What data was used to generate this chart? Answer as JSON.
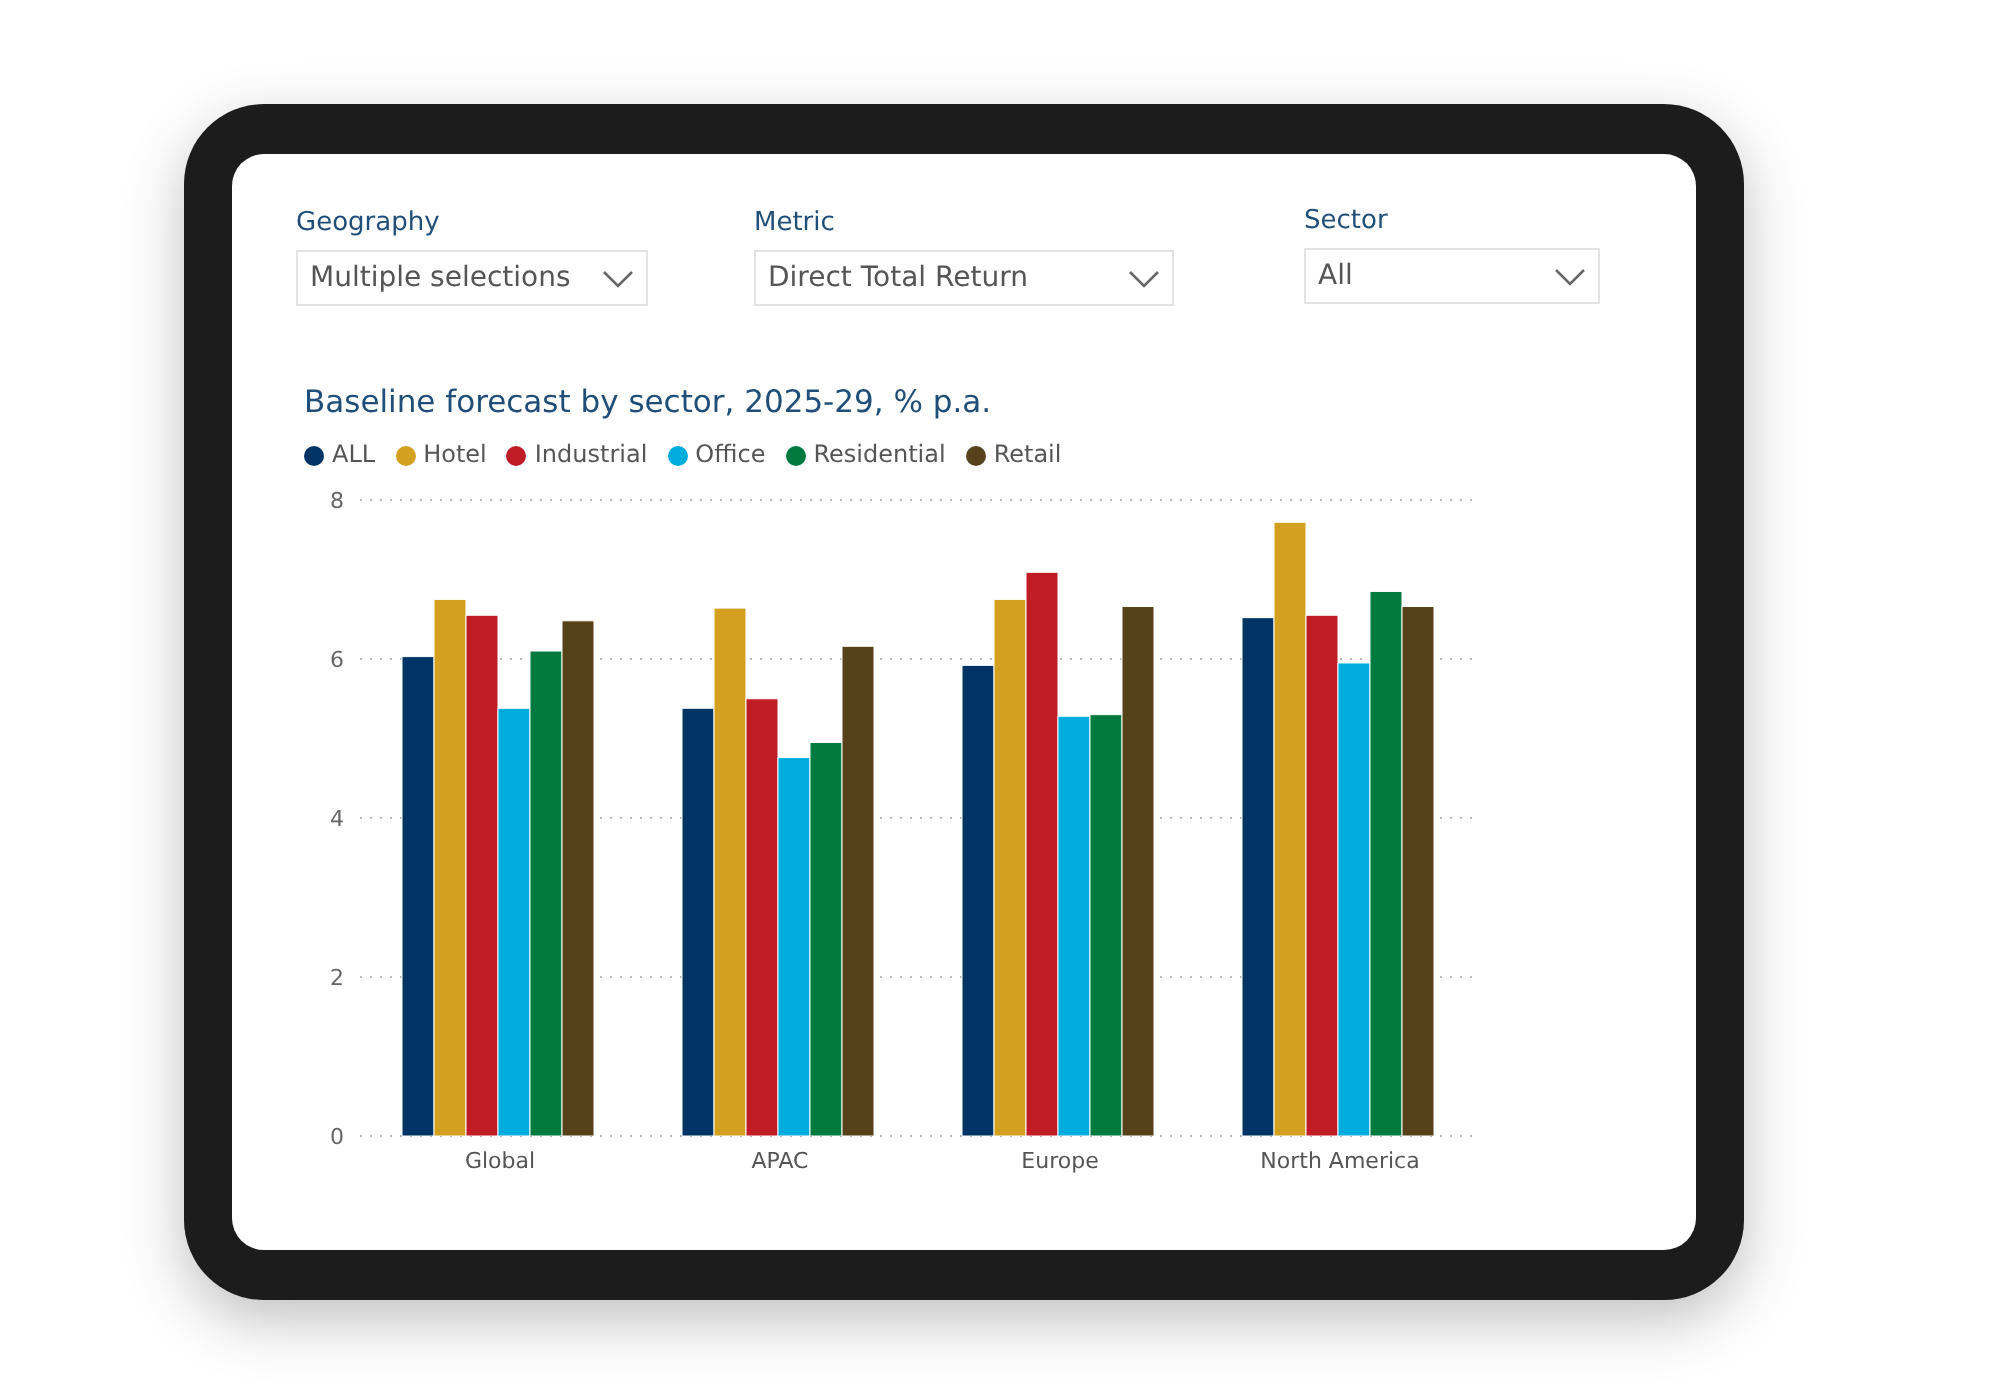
{
  "chart_data": {
    "type": "bar",
    "title": "Baseline forecast by sector, 2025-29, % p.a.",
    "annotations": [
      "Geography",
      "Multiple selections",
      "Metric",
      "Direct Total Return",
      "Sector",
      "All"
    ],
    "categories": [
      "Global",
      "APAC",
      "Europe",
      "North America"
    ],
    "series": [
      {
        "name": "ALL",
        "color": "#003366",
        "values": [
          6.03,
          5.38,
          5.92,
          6.52
        ]
      },
      {
        "name": "Hotel",
        "color": "#d4a020",
        "values": [
          6.75,
          6.64,
          6.75,
          7.72
        ]
      },
      {
        "name": "Industrial",
        "color": "#c01c26",
        "values": [
          6.55,
          5.5,
          7.09,
          6.55
        ]
      },
      {
        "name": "Office",
        "color": "#00acdc",
        "values": [
          5.38,
          4.76,
          5.28,
          5.95
        ]
      },
      {
        "name": "Residential",
        "color": "#007a3e",
        "values": [
          6.1,
          4.95,
          5.3,
          6.85
        ]
      },
      {
        "name": "Retail",
        "color": "#56421a",
        "values": [
          6.48,
          6.16,
          6.66,
          6.66
        ]
      }
    ],
    "ylim": [
      0,
      8
    ],
    "yticks": [
      0,
      2,
      4,
      6,
      8
    ],
    "grid": "y",
    "legend": "top left"
  }
}
